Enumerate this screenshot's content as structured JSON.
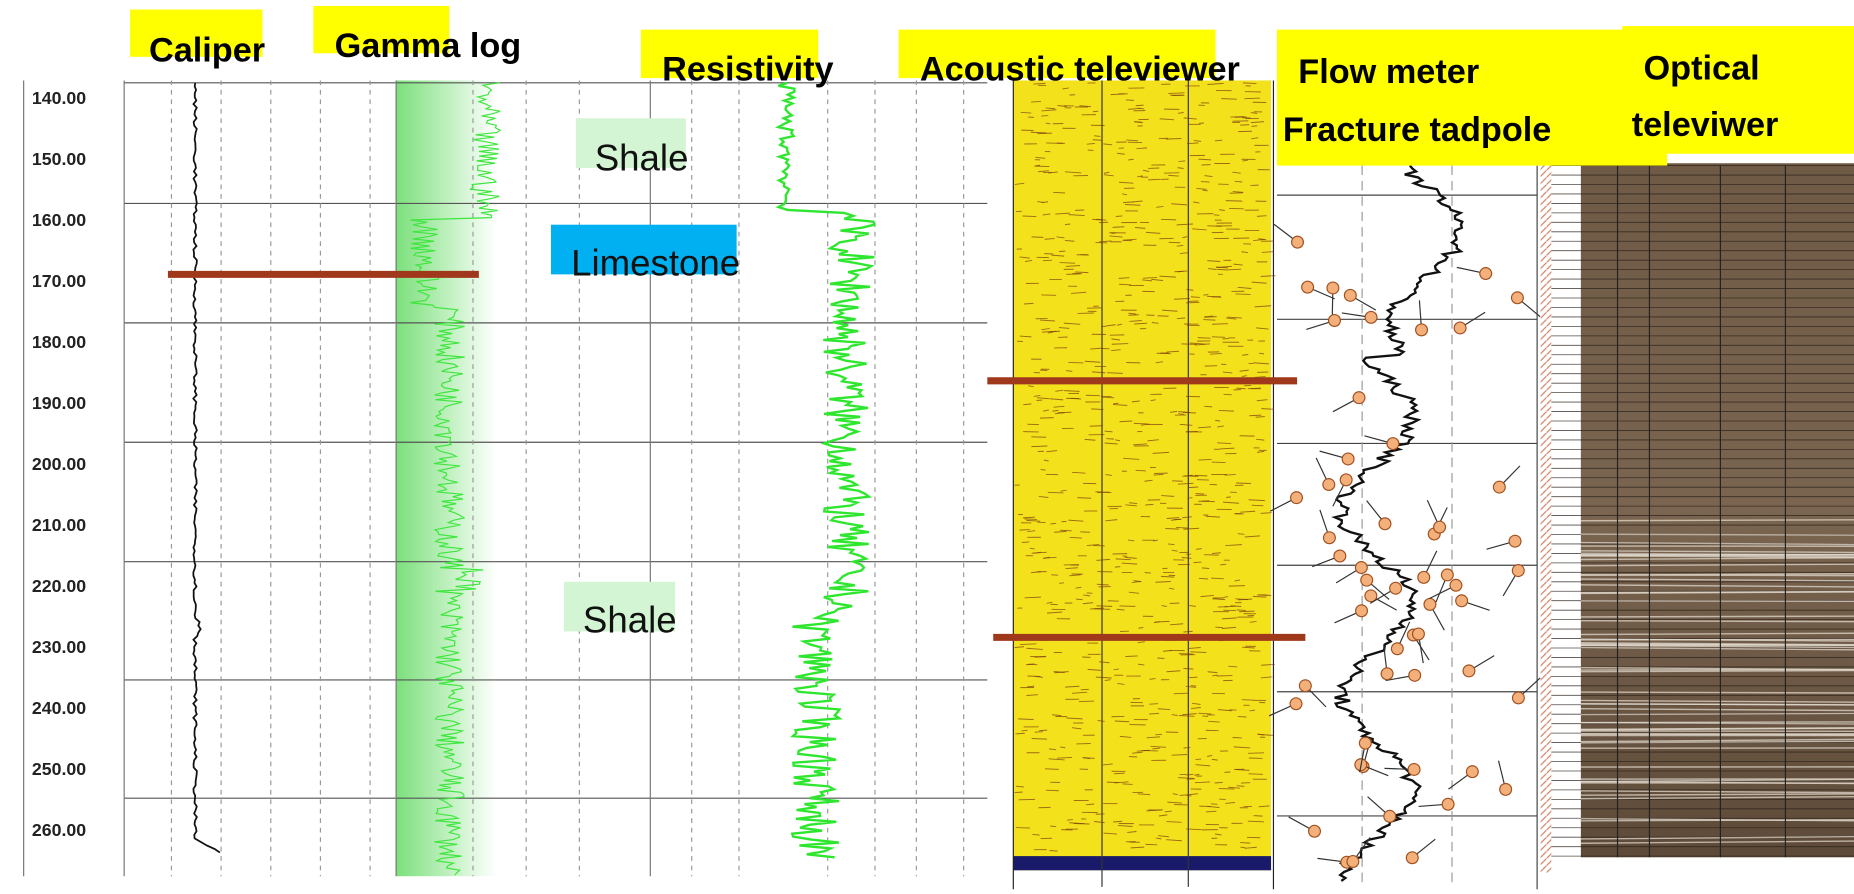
{
  "headers": {
    "caliper": "Caliper",
    "gamma": "Gamma log",
    "resistivity": "Resistivity",
    "acoustic": "Acoustic televiewer",
    "flow": [
      "Flow meter",
      "Fracture tadpole"
    ],
    "optical": [
      "Optical",
      "televiwer"
    ]
  },
  "depth_labels": [
    "140.00",
    "150.00",
    "160.00",
    "170.00",
    "180.00",
    "190.00",
    "200.00",
    "210.00",
    "220.00",
    "230.00",
    "240.00",
    "250.00",
    "260.00"
  ],
  "lithology": [
    "Shale",
    "Limestone",
    "Shale"
  ]
}
